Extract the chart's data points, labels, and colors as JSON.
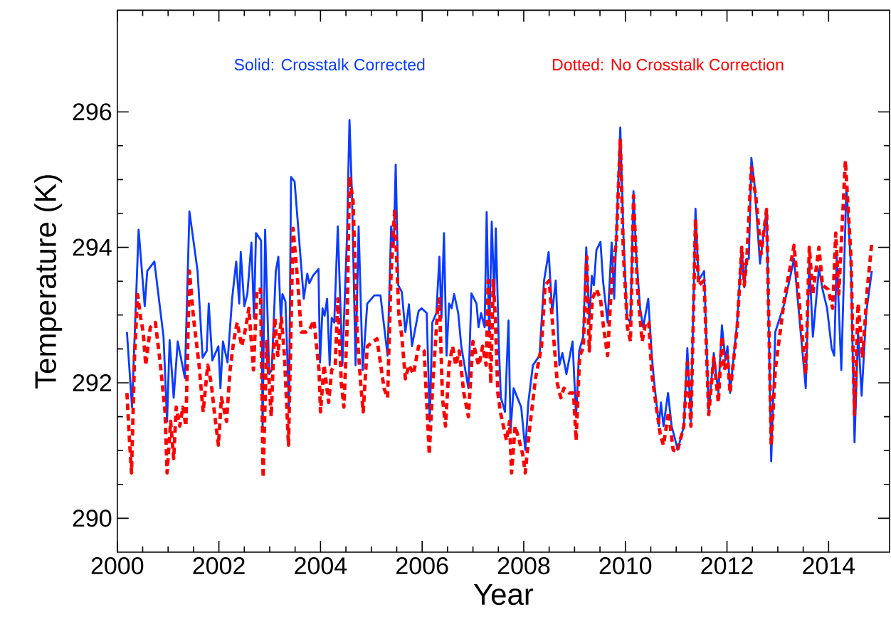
{
  "chart_data": {
    "type": "line",
    "xlabel": "Year",
    "ylabel": "Temperature (K)",
    "xlim": [
      2000,
      2015.2
    ],
    "ylim": [
      289.5,
      297.5
    ],
    "xticks": [
      2000,
      2002,
      2004,
      2006,
      2008,
      2010,
      2012,
      2014
    ],
    "yticks": [
      290,
      292,
      294,
      296
    ],
    "marker": "none",
    "series": [
      {
        "name": "Solid: Crosstalk Corrected",
        "color": "#0a3cff",
        "line_style": "solid",
        "x": [
          2000.19,
          2000.29,
          2000.42,
          2000.54,
          2000.59,
          2000.73,
          2000.91,
          2000.98,
          2001.03,
          2001.11,
          2001.19,
          2001.33,
          2001.42,
          2001.58,
          2001.68,
          2001.76,
          2001.8,
          2001.87,
          2001.99,
          2002.03,
          2002.08,
          2002.17,
          2002.26,
          2002.34,
          2002.4,
          2002.43,
          2002.5,
          2002.56,
          2002.64,
          2002.69,
          2002.73,
          2002.83,
          2002.86,
          2002.91,
          2002.99,
          2003.04,
          2003.12,
          2003.17,
          2003.22,
          2003.25,
          2003.31,
          2003.38,
          2003.42,
          2003.49,
          2003.67,
          2003.74,
          2003.78,
          2003.85,
          2003.96,
          2003.99,
          2004.04,
          2004.08,
          2004.13,
          2004.18,
          2004.22,
          2004.27,
          2004.34,
          2004.43,
          2004.52,
          2004.57,
          2004.62,
          2004.69,
          2004.75,
          2004.83,
          2004.92,
          2005.06,
          2005.18,
          2005.32,
          2005.39,
          2005.44,
          2005.48,
          2005.53,
          2005.6,
          2005.67,
          2005.74,
          2005.8,
          2005.93,
          2005.99,
          2006.09,
          2006.15,
          2006.2,
          2006.28,
          2006.34,
          2006.38,
          2006.43,
          2006.48,
          2006.53,
          2006.58,
          2006.63,
          2006.71,
          2006.77,
          2006.91,
          2006.97,
          2007.07,
          2007.11,
          2007.16,
          2007.23,
          2007.27,
          2007.32,
          2007.37,
          2007.42,
          2007.45,
          2007.51,
          2007.55,
          2007.63,
          2007.7,
          2007.74,
          2007.8,
          2007.95,
          2008.03,
          2008.09,
          2008.18,
          2008.31,
          2008.4,
          2008.49,
          2008.56,
          2008.63,
          2008.7,
          2008.76,
          2008.84,
          2008.96,
          2009.03,
          2009.09,
          2009.17,
          2009.23,
          2009.29,
          2009.34,
          2009.38,
          2009.43,
          2009.51,
          2009.56,
          2009.65,
          2009.73,
          2009.78,
          2009.82,
          2009.9,
          2009.96,
          2010.03,
          2010.1,
          2010.16,
          2010.21,
          2010.29,
          2010.35,
          2010.45,
          2010.52,
          2010.56,
          2010.66,
          2010.7,
          2010.75,
          2010.84,
          2010.91,
          2010.96,
          2011.03,
          2011.15,
          2011.22,
          2011.29,
          2011.38,
          2011.44,
          2011.55,
          2011.64,
          2011.74,
          2011.83,
          2011.9,
          2011.97,
          2012.01,
          2012.06,
          2012.2,
          2012.29,
          2012.34,
          2012.39,
          2012.43,
          2012.48,
          2012.54,
          2012.65,
          2012.78,
          2012.87,
          2012.95,
          2013.13,
          2013.32,
          2013.55,
          2013.62,
          2013.69,
          2013.81,
          2013.88,
          2013.97,
          2014.06,
          2014.11,
          2014.16,
          2014.25,
          2014.35,
          2014.44,
          2014.51,
          2014.58,
          2014.65,
          2014.74,
          2014.85
        ],
        "values": [
          292.75,
          291.64,
          294.26,
          293.13,
          293.65,
          293.79,
          292.68,
          291.43,
          292.63,
          291.78,
          292.61,
          292.07,
          294.53,
          293.65,
          292.37,
          292.47,
          293.17,
          292.33,
          292.54,
          291.92,
          292.61,
          292.3,
          293.24,
          293.79,
          293.17,
          293.93,
          293.13,
          293.31,
          294.07,
          292.96,
          294.21,
          294.1,
          291.33,
          294.26,
          292.13,
          292.19,
          293.65,
          293.86,
          292.89,
          293.31,
          293.2,
          291.64,
          295.04,
          294.97,
          293.24,
          293.61,
          293.47,
          293.58,
          293.68,
          292.3,
          293.1,
          292.99,
          293.24,
          292.26,
          292.96,
          292.89,
          294.31,
          292.26,
          294.14,
          295.88,
          294.76,
          292.26,
          294.31,
          292.19,
          293.17,
          293.29,
          293.29,
          292.4,
          294.31,
          294.0,
          295.22,
          293.44,
          293.34,
          292.75,
          293.16,
          292.54,
          293.06,
          293.1,
          293.03,
          291.43,
          292.89,
          293.03,
          293.86,
          292.96,
          294.21,
          292.4,
          293.17,
          293.1,
          293.31,
          293.03,
          292.54,
          291.92,
          293.32,
          293.17,
          292.82,
          293.03,
          292.82,
          294.52,
          292.68,
          294.38,
          293.24,
          294.28,
          292.54,
          291.78,
          291.57,
          292.92,
          291.29,
          291.92,
          291.64,
          291.01,
          291.71,
          292.26,
          292.4,
          293.51,
          293.93,
          293.03,
          293.51,
          292.26,
          292.44,
          292.13,
          292.61,
          291.5,
          292.47,
          292.68,
          294.0,
          292.89,
          293.58,
          293.44,
          293.96,
          294.08,
          293.51,
          292.89,
          294.07,
          293.24,
          294.14,
          295.77,
          294.21,
          292.96,
          292.89,
          294.83,
          293.93,
          293.1,
          292.82,
          293.24,
          292.4,
          292.06,
          291.36,
          291.71,
          291.36,
          291.85,
          291.36,
          291.22,
          291.01,
          291.36,
          292.51,
          291.43,
          294.57,
          293.51,
          293.65,
          291.57,
          292.44,
          291.85,
          292.85,
          292.33,
          292.54,
          291.85,
          292.89,
          294.0,
          293.41,
          293.83,
          293.83,
          295.32,
          294.94,
          293.76,
          294.56,
          290.84,
          292.75,
          293.17,
          293.83,
          291.92,
          293.81,
          292.68,
          293.69,
          293.38,
          293.1,
          292.51,
          292.4,
          293.86,
          292.19,
          294.9,
          293.72,
          291.12,
          292.75,
          291.81,
          293.03,
          293.65
        ]
      },
      {
        "name": "Dotted: No Crosstalk Correction",
        "color": "#ff0000",
        "line_style": "dashed",
        "x": [
          2000.19,
          2000.24,
          2000.28,
          2000.34,
          2000.4,
          2000.46,
          2000.51,
          2000.56,
          2000.65,
          2000.75,
          2000.85,
          2000.94,
          2000.98,
          2001.05,
          2001.11,
          2001.16,
          2001.23,
          2001.29,
          2001.35,
          2001.42,
          2001.5,
          2001.61,
          2001.69,
          2001.78,
          2001.85,
          2001.91,
          2001.99,
          2002.05,
          2002.15,
          2002.22,
          2002.29,
          2002.36,
          2002.45,
          2002.53,
          2002.59,
          2002.68,
          2002.75,
          2002.82,
          2002.87,
          2002.94,
          2003.03,
          2003.1,
          2003.16,
          2003.23,
          2003.29,
          2003.37,
          2003.46,
          2003.55,
          2003.62,
          2003.71,
          2003.78,
          2003.87,
          2003.97,
          2004.0,
          2004.07,
          2004.16,
          2004.22,
          2004.29,
          2004.34,
          2004.41,
          2004.46,
          2004.52,
          2004.57,
          2004.64,
          2004.72,
          2004.79,
          2004.84,
          2004.92,
          2005.11,
          2005.25,
          2005.32,
          2005.39,
          2005.46,
          2005.54,
          2005.6,
          2005.67,
          2005.74,
          2005.83,
          2005.93,
          2006.04,
          2006.14,
          2006.21,
          2006.3,
          2006.34,
          2006.4,
          2006.46,
          2006.53,
          2006.6,
          2006.66,
          2006.73,
          2006.82,
          2006.91,
          2007.0,
          2007.11,
          2007.12,
          2007.19,
          2007.26,
          2007.3,
          2007.35,
          2007.4,
          2007.44,
          2007.49,
          2007.54,
          2007.6,
          2007.66,
          2007.72,
          2007.76,
          2007.83,
          2007.91,
          2007.98,
          2008.03,
          2008.11,
          2008.23,
          2008.35,
          2008.42,
          2008.5,
          2008.58,
          2008.66,
          2008.73,
          2008.79,
          2008.89,
          2008.98,
          2009.03,
          2009.1,
          2009.17,
          2009.24,
          2009.29,
          2009.35,
          2009.43,
          2009.51,
          2009.57,
          2009.65,
          2009.73,
          2009.82,
          2009.9,
          2009.96,
          2010.04,
          2010.1,
          2010.16,
          2010.24,
          2010.33,
          2010.4,
          2010.46,
          2010.52,
          2010.61,
          2010.69,
          2010.75,
          2010.85,
          2010.94,
          2011.02,
          2011.15,
          2011.22,
          2011.29,
          2011.38,
          2011.44,
          2011.55,
          2011.64,
          2011.74,
          2011.83,
          2011.9,
          2011.95,
          2012.01,
          2012.06,
          2012.2,
          2012.29,
          2012.34,
          2012.39,
          2012.48,
          2012.57,
          2012.67,
          2012.78,
          2012.87,
          2012.95,
          2013.13,
          2013.32,
          2013.55,
          2013.62,
          2013.69,
          2013.81,
          2013.88,
          2013.99,
          2014.08,
          2014.14,
          2014.2,
          2014.33,
          2014.44,
          2014.51,
          2014.58,
          2014.67,
          2014.76,
          2014.85
        ],
        "values": [
          291.85,
          291.15,
          290.67,
          292.4,
          293.3,
          292.96,
          292.75,
          292.26,
          292.82,
          292.89,
          292.26,
          291.57,
          290.67,
          291.43,
          290.88,
          291.64,
          291.36,
          291.64,
          291.36,
          293.65,
          292.96,
          292.26,
          291.57,
          292.26,
          291.99,
          291.57,
          291.08,
          291.78,
          291.43,
          292.19,
          292.61,
          292.89,
          292.54,
          292.82,
          293.1,
          292.19,
          293.38,
          293.38,
          290.6,
          292.61,
          291.5,
          292.96,
          292.4,
          292.96,
          292.4,
          291.08,
          294.28,
          293.51,
          292.75,
          292.75,
          292.78,
          292.92,
          292.19,
          291.57,
          292.26,
          291.71,
          292.19,
          292.26,
          293.24,
          291.99,
          291.64,
          292.75,
          295.04,
          294.69,
          292.75,
          291.99,
          291.57,
          292.54,
          292.65,
          291.92,
          291.78,
          293.65,
          294.56,
          293.03,
          292.68,
          292.06,
          292.26,
          292.13,
          292.54,
          292.47,
          290.94,
          291.99,
          293.03,
          293.24,
          291.78,
          291.36,
          292.26,
          292.54,
          292.26,
          292.47,
          291.85,
          291.5,
          292.61,
          292.26,
          292.26,
          292.54,
          292.26,
          293.51,
          291.99,
          293.51,
          292.96,
          291.85,
          291.57,
          291.36,
          291.15,
          291.43,
          290.67,
          291.36,
          291.15,
          290.94,
          290.67,
          291.29,
          292.06,
          292.54,
          293.44,
          293.51,
          292.75,
          291.99,
          291.78,
          291.92,
          291.85,
          291.85,
          291.15,
          292.4,
          292.51,
          293.86,
          292.47,
          293.24,
          293.38,
          293.24,
          292.82,
          292.4,
          293.51,
          294.07,
          295.6,
          293.93,
          292.82,
          292.61,
          294.76,
          293.38,
          292.61,
          292.89,
          292.89,
          292.13,
          291.64,
          291.22,
          291.08,
          291.57,
          291.01,
          290.98,
          291.36,
          292.3,
          291.36,
          294.42,
          293.44,
          293.51,
          291.53,
          292.37,
          291.71,
          292.68,
          292.19,
          292.4,
          291.85,
          292.82,
          294.0,
          293.44,
          293.83,
          295.18,
          294.73,
          293.9,
          294.56,
          291.08,
          292.19,
          293.24,
          294.03,
          292.13,
          294.0,
          293.31,
          294.0,
          293.44,
          293.38,
          293.1,
          294.21,
          293.31,
          295.28,
          293.86,
          291.53,
          293.17,
          292.37,
          293.38,
          294.07
        ]
      }
    ]
  }
}
